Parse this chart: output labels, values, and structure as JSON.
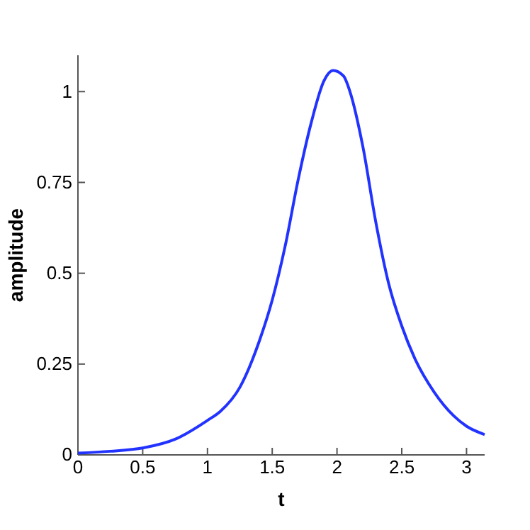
{
  "chart_data": {
    "type": "line",
    "xlabel": "t",
    "ylabel": "amplitude",
    "x": [
      0,
      0.25,
      0.5,
      0.75,
      1,
      1.1,
      1.25,
      1.4,
      1.5,
      1.6,
      1.7,
      1.8,
      1.9,
      1.97,
      2.05,
      2.1,
      2.2,
      2.3,
      2.4,
      2.5,
      2.6,
      2.75,
      2.9,
      3.0,
      3.14
    ],
    "series": [
      {
        "color": "#2233ff",
        "values": [
          0.005,
          0.01,
          0.019,
          0.043,
          0.095,
          0.12,
          0.186,
          0.313,
          0.426,
          0.575,
          0.757,
          0.913,
          1.03,
          1.058,
          1.043,
          1.0,
          0.848,
          0.64,
          0.47,
          0.355,
          0.266,
          0.173,
          0.108,
          0.079,
          0.056
        ]
      }
    ],
    "xlim": [
      0,
      3.14
    ],
    "ylim": [
      0,
      1.1
    ],
    "xticks": [
      0,
      0.5,
      1,
      1.5,
      2,
      2.5,
      3
    ],
    "yticks": [
      0,
      0.25,
      0.5,
      0.75,
      1
    ],
    "marker": "none",
    "line_style": "solid"
  }
}
